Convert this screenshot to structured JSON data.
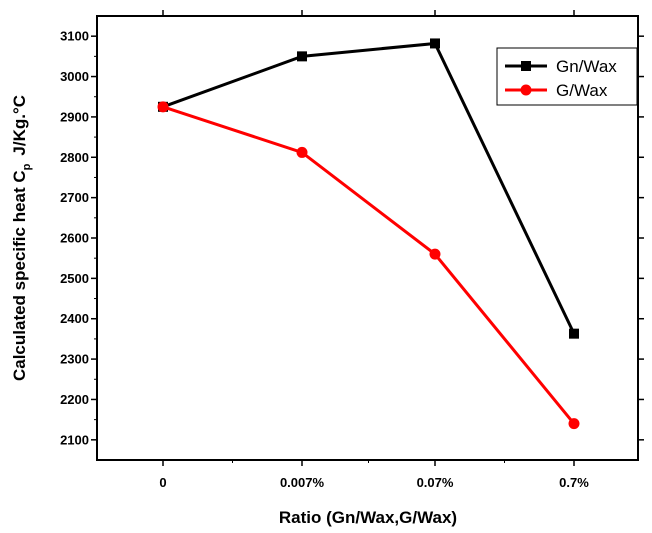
{
  "chart_data": {
    "type": "line",
    "categories": [
      "0",
      "0.007%",
      "0.07%",
      "0.7%"
    ],
    "series": [
      {
        "name": "Gn/Wax",
        "color": "#000000",
        "marker": "square",
        "values": [
          2925,
          3050,
          3082,
          2363
        ]
      },
      {
        "name": "G/Wax",
        "color": "#ff0000",
        "marker": "circle",
        "values": [
          2925,
          2812,
          2560,
          2140
        ]
      }
    ],
    "xlabel": "Ratio (Gn/Wax,G/Wax)",
    "ylabel": {
      "prefix": "Calculated specific heat C",
      "subscript": "p",
      "unit": "J/Kg.°C"
    },
    "ylim": [
      2050,
      3150
    ],
    "yticks": [
      2100,
      2200,
      2300,
      2400,
      2500,
      2600,
      2700,
      2800,
      2900,
      3000,
      3100
    ],
    "grid": false,
    "legend_position": "top-right"
  }
}
